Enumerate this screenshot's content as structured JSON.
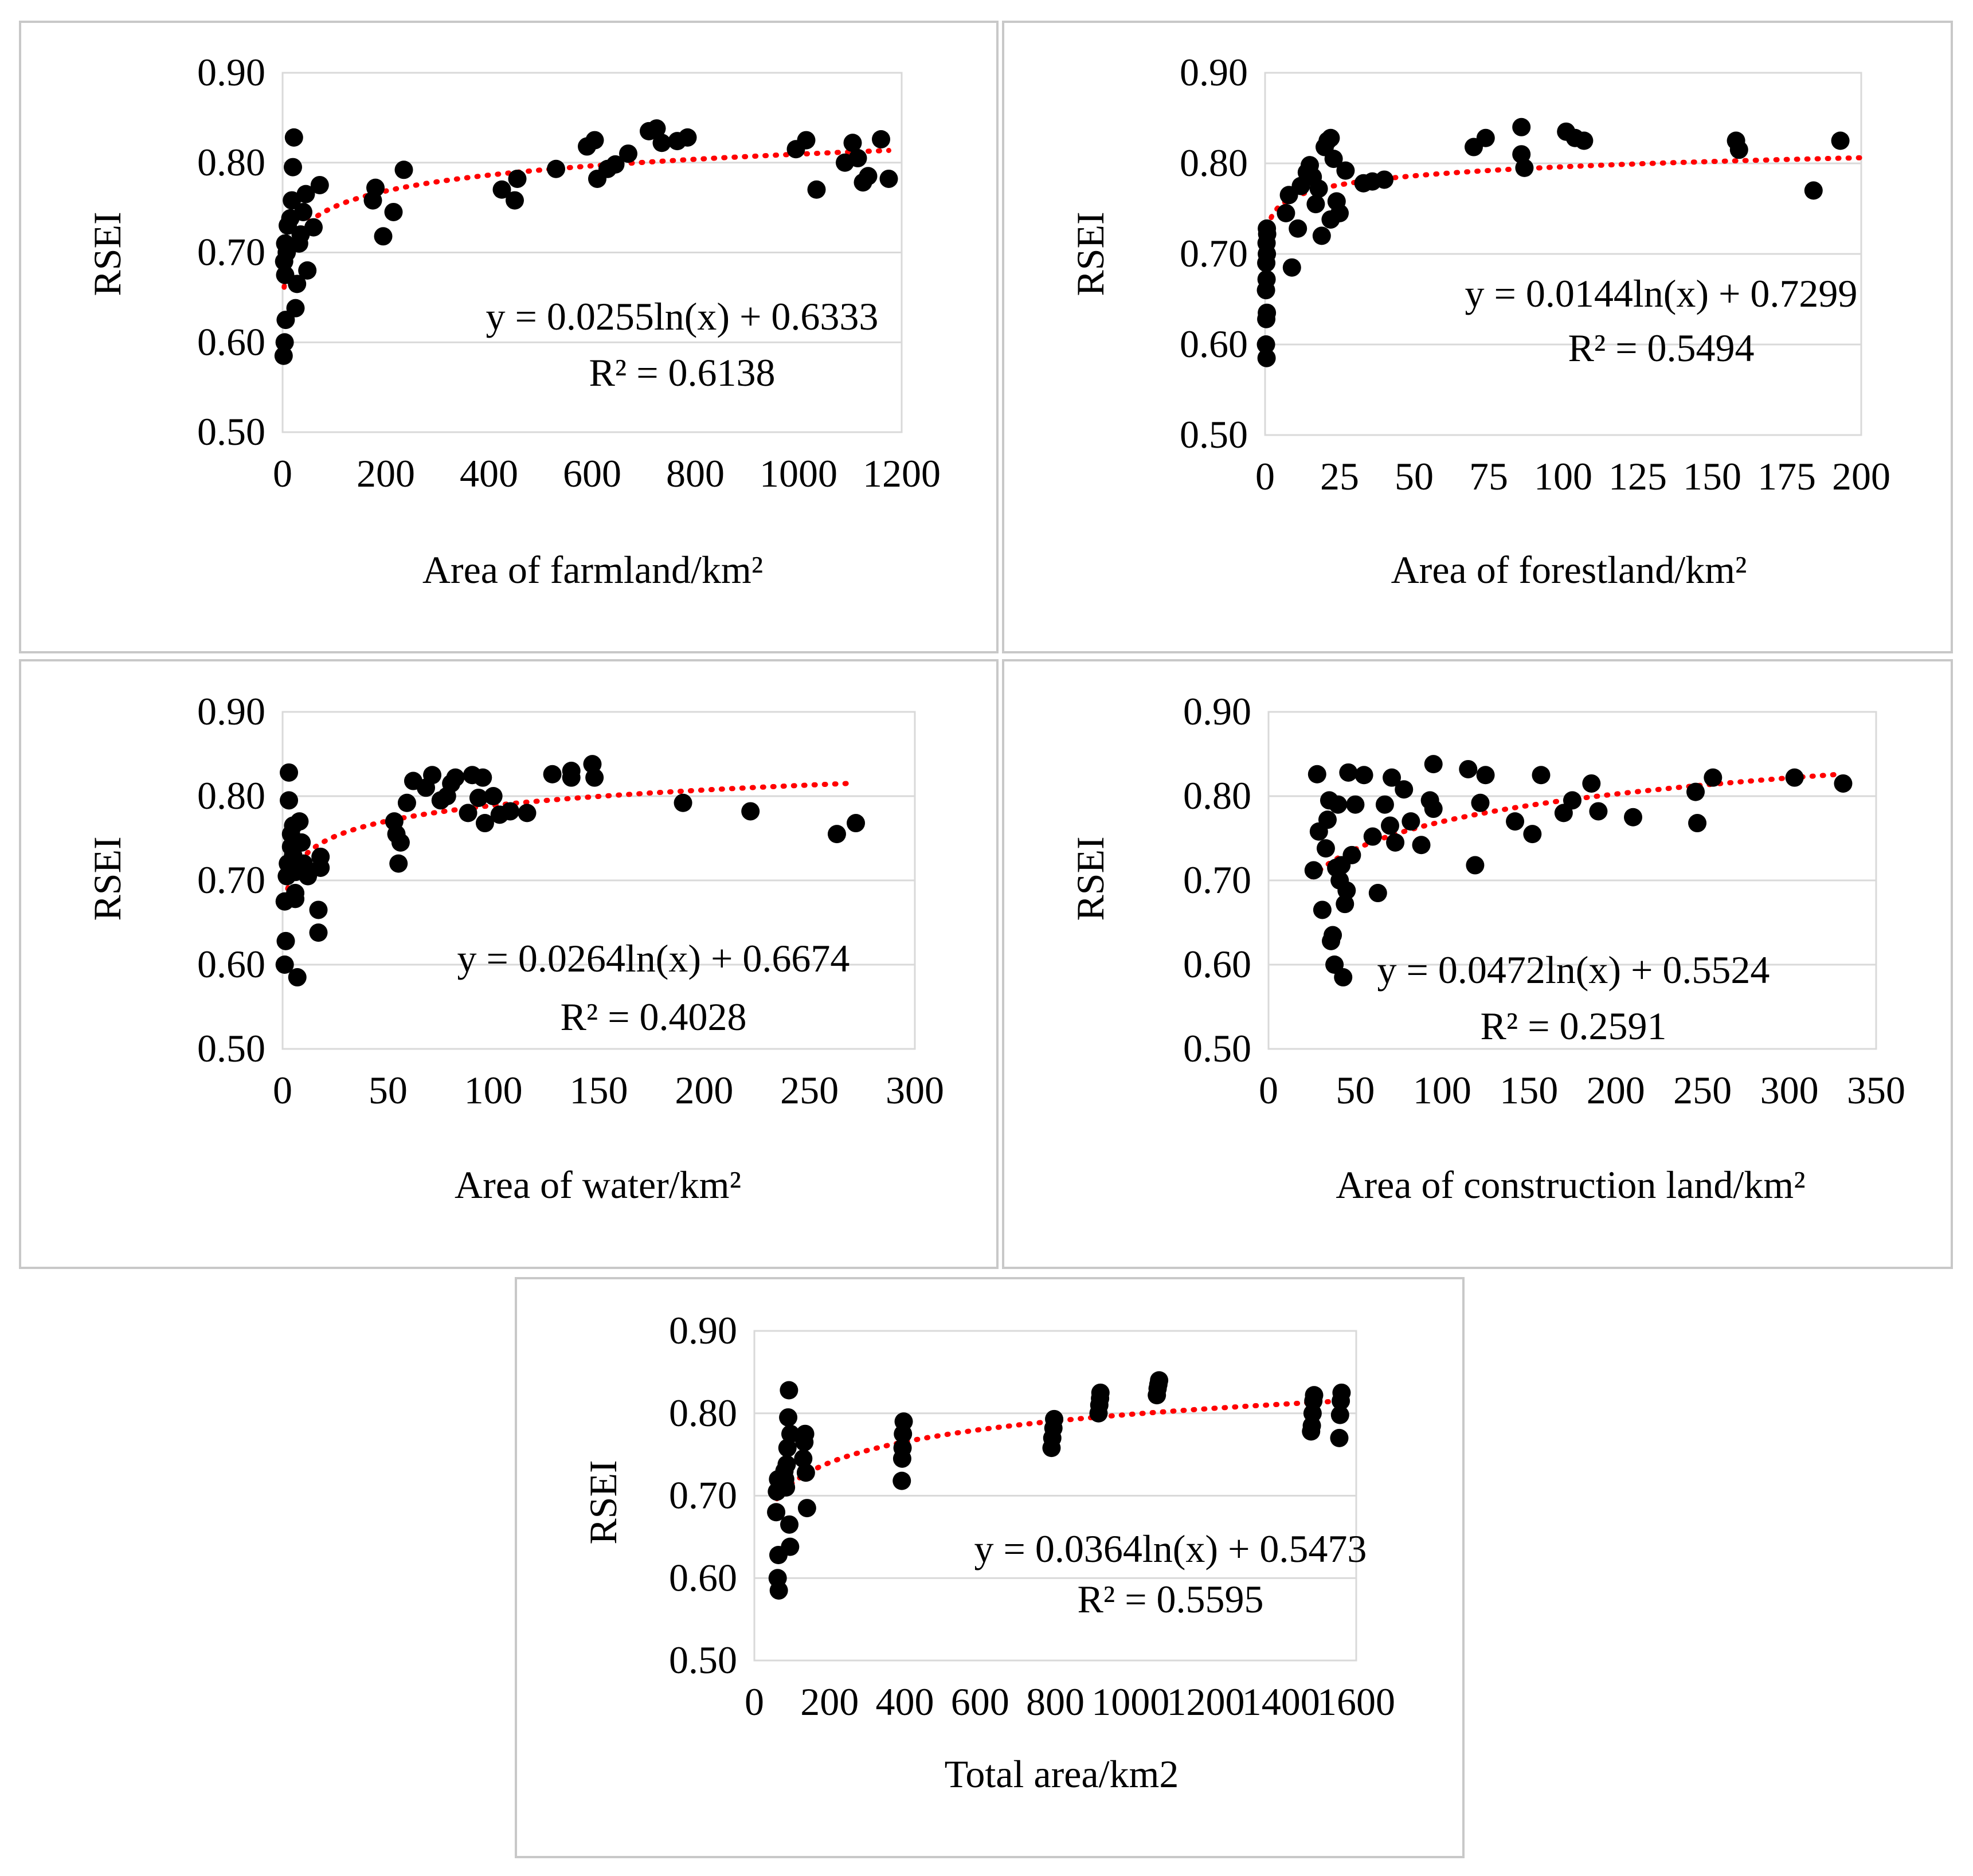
{
  "colors": {
    "points": "#000000",
    "trendline": "#ff0000",
    "grid": "#d9d9d9",
    "frame": "#c8c8c8"
  },
  "chart_data": [
    {
      "id": "farmland",
      "type": "scatter",
      "title": "",
      "xlabel": "Area of farmland/km²",
      "ylabel": "RSEI",
      "xlim": [
        0,
        1200
      ],
      "ylim": [
        0.5,
        0.9
      ],
      "xticks": [
        "0",
        "200",
        "400",
        "600",
        "800",
        "1000",
        "1200"
      ],
      "yticks": [
        "0.50",
        "0.60",
        "0.70",
        "0.80",
        "0.90"
      ],
      "trendline": {
        "type": "log",
        "a": 0.0255,
        "b": 0.6333,
        "x_range": [
          3,
          1175
        ],
        "equation": "y = 0.0255ln(x) + 0.6333",
        "r2": "R² = 0.6138"
      },
      "points": [
        [
          2,
          0.585
        ],
        [
          4,
          0.6
        ],
        [
          6,
          0.625
        ],
        [
          5,
          0.675
        ],
        [
          3,
          0.69
        ],
        [
          8,
          0.7
        ],
        [
          5,
          0.71
        ],
        [
          10,
          0.73
        ],
        [
          15,
          0.738
        ],
        [
          18,
          0.758
        ],
        [
          20,
          0.795
        ],
        [
          22,
          0.828
        ],
        [
          28,
          0.665
        ],
        [
          25,
          0.638
        ],
        [
          32,
          0.71
        ],
        [
          35,
          0.72
        ],
        [
          40,
          0.745
        ],
        [
          45,
          0.765
        ],
        [
          48,
          0.68
        ],
        [
          60,
          0.728
        ],
        [
          72,
          0.775
        ],
        [
          175,
          0.758
        ],
        [
          180,
          0.772
        ],
        [
          195,
          0.718
        ],
        [
          215,
          0.745
        ],
        [
          235,
          0.792
        ],
        [
          425,
          0.77
        ],
        [
          450,
          0.758
        ],
        [
          455,
          0.782
        ],
        [
          530,
          0.793
        ],
        [
          590,
          0.818
        ],
        [
          605,
          0.825
        ],
        [
          610,
          0.782
        ],
        [
          630,
          0.793
        ],
        [
          645,
          0.798
        ],
        [
          670,
          0.81
        ],
        [
          710,
          0.835
        ],
        [
          725,
          0.838
        ],
        [
          735,
          0.822
        ],
        [
          765,
          0.824
        ],
        [
          785,
          0.828
        ],
        [
          995,
          0.815
        ],
        [
          1015,
          0.825
        ],
        [
          1035,
          0.77
        ],
        [
          1090,
          0.8
        ],
        [
          1105,
          0.822
        ],
        [
          1115,
          0.805
        ],
        [
          1125,
          0.778
        ],
        [
          1135,
          0.785
        ],
        [
          1160,
          0.826
        ],
        [
          1175,
          0.782
        ]
      ]
    },
    {
      "id": "forestland",
      "type": "scatter",
      "title": "",
      "xlabel": "Area of forestland/km²",
      "ylabel": "RSEI",
      "xlim": [
        0,
        200
      ],
      "ylim": [
        0.5,
        0.9
      ],
      "xticks": [
        "0",
        "25",
        "50",
        "75",
        "100",
        "125",
        "150",
        "175",
        "200"
      ],
      "yticks": [
        "0.50",
        "0.60",
        "0.70",
        "0.80",
        "0.90"
      ],
      "trendline": {
        "type": "log",
        "a": 0.0144,
        "b": 0.7299,
        "x_range": [
          0.2,
          200
        ],
        "equation": "y = 0.0144ln(x) + 0.7299",
        "r2": "R² = 0.5494"
      },
      "points": [
        [
          0.5,
          0.585
        ],
        [
          0.3,
          0.6
        ],
        [
          0.4,
          0.628
        ],
        [
          0.6,
          0.635
        ],
        [
          0.3,
          0.66
        ],
        [
          0.5,
          0.672
        ],
        [
          0.4,
          0.69
        ],
        [
          0.6,
          0.7
        ],
        [
          0.5,
          0.712
        ],
        [
          0.7,
          0.722
        ],
        [
          0.6,
          0.728
        ],
        [
          7,
          0.745
        ],
        [
          8,
          0.765
        ],
        [
          9,
          0.685
        ],
        [
          11,
          0.728
        ],
        [
          12,
          0.775
        ],
        [
          14,
          0.79
        ],
        [
          15,
          0.798
        ],
        [
          16,
          0.785
        ],
        [
          17,
          0.755
        ],
        [
          18,
          0.772
        ],
        [
          19,
          0.72
        ],
        [
          20,
          0.818
        ],
        [
          21,
          0.825
        ],
        [
          22,
          0.738
        ],
        [
          22,
          0.828
        ],
        [
          23,
          0.805
        ],
        [
          24,
          0.758
        ],
        [
          25,
          0.745
        ],
        [
          27,
          0.792
        ],
        [
          33,
          0.778
        ],
        [
          36,
          0.78
        ],
        [
          40,
          0.782
        ],
        [
          70,
          0.818
        ],
        [
          74,
          0.828
        ],
        [
          86,
          0.84
        ],
        [
          86,
          0.81
        ],
        [
          87,
          0.795
        ],
        [
          101,
          0.835
        ],
        [
          104,
          0.828
        ],
        [
          107,
          0.825
        ],
        [
          158,
          0.825
        ],
        [
          159,
          0.815
        ],
        [
          184,
          0.77
        ],
        [
          193,
          0.825
        ]
      ]
    },
    {
      "id": "water",
      "type": "scatter",
      "title": "",
      "xlabel": "Area of water/km²",
      "ylabel": "RSEI",
      "xlim": [
        0,
        300
      ],
      "ylim": [
        0.5,
        0.9
      ],
      "xticks": [
        "0",
        "50",
        "100",
        "150",
        "200",
        "250",
        "300"
      ],
      "yticks": [
        "0.50",
        "0.60",
        "0.70",
        "0.80",
        "0.90"
      ],
      "trendline": {
        "type": "log",
        "a": 0.0264,
        "b": 0.6674,
        "x_range": [
          1.5,
          268
        ],
        "equation": "y = 0.0264ln(x) + 0.6674",
        "r2": "R² = 0.4028"
      },
      "points": [
        [
          1,
          0.6
        ],
        [
          1.5,
          0.628
        ],
        [
          1,
          0.675
        ],
        [
          2,
          0.705
        ],
        [
          2.5,
          0.72
        ],
        [
          3,
          0.828
        ],
        [
          3,
          0.795
        ],
        [
          4,
          0.74
        ],
        [
          4,
          0.755
        ],
        [
          5,
          0.765
        ],
        [
          5,
          0.73
        ],
        [
          6,
          0.71
        ],
        [
          6,
          0.685
        ],
        [
          6,
          0.678
        ],
        [
          7,
          0.585
        ],
        [
          8,
          0.77
        ],
        [
          9,
          0.745
        ],
        [
          10,
          0.72
        ],
        [
          12,
          0.705
        ],
        [
          17,
          0.665
        ],
        [
          17,
          0.638
        ],
        [
          18,
          0.728
        ],
        [
          18,
          0.715
        ],
        [
          53,
          0.77
        ],
        [
          54,
          0.755
        ],
        [
          55,
          0.72
        ],
        [
          56,
          0.745
        ],
        [
          59,
          0.792
        ],
        [
          62,
          0.818
        ],
        [
          68,
          0.81
        ],
        [
          71,
          0.825
        ],
        [
          75,
          0.795
        ],
        [
          78,
          0.8
        ],
        [
          80,
          0.815
        ],
        [
          82,
          0.822
        ],
        [
          88,
          0.78
        ],
        [
          90,
          0.825
        ],
        [
          93,
          0.798
        ],
        [
          95,
          0.822
        ],
        [
          96,
          0.768
        ],
        [
          100,
          0.8
        ],
        [
          103,
          0.778
        ],
        [
          108,
          0.782
        ],
        [
          116,
          0.78
        ],
        [
          128,
          0.826
        ],
        [
          137,
          0.83
        ],
        [
          137,
          0.822
        ],
        [
          147,
          0.838
        ],
        [
          148,
          0.822
        ],
        [
          190,
          0.792
        ],
        [
          222,
          0.782
        ],
        [
          263,
          0.755
        ],
        [
          272,
          0.768
        ]
      ]
    },
    {
      "id": "construction",
      "type": "scatter",
      "title": "",
      "xlabel": "Area of construction land/km²",
      "ylabel": "RSEI",
      "xlim": [
        0,
        350
      ],
      "ylim": [
        0.5,
        0.9
      ],
      "xticks": [
        "0",
        "50",
        "100",
        "150",
        "200",
        "250",
        "300",
        "350"
      ],
      "yticks": [
        "0.50",
        "0.60",
        "0.70",
        "0.80",
        "0.90"
      ],
      "trendline": {
        "type": "log",
        "a": 0.0472,
        "b": 0.5524,
        "x_range": [
          25,
          330
        ],
        "equation": "y = 0.0472ln(x) + 0.5524",
        "r2": "R² = 0.2591"
      },
      "points": [
        [
          26,
          0.712
        ],
        [
          28,
          0.826
        ],
        [
          29,
          0.758
        ],
        [
          31,
          0.665
        ],
        [
          33,
          0.738
        ],
        [
          34,
          0.772
        ],
        [
          35,
          0.795
        ],
        [
          36,
          0.628
        ],
        [
          37,
          0.635
        ],
        [
          38,
          0.6
        ],
        [
          39,
          0.715
        ],
        [
          40,
          0.79
        ],
        [
          41,
          0.7
        ],
        [
          42,
          0.718
        ],
        [
          43,
          0.585
        ],
        [
          44,
          0.672
        ],
        [
          45,
          0.688
        ],
        [
          46,
          0.828
        ],
        [
          48,
          0.73
        ],
        [
          50,
          0.79
        ],
        [
          55,
          0.825
        ],
        [
          60,
          0.752
        ],
        [
          63,
          0.685
        ],
        [
          67,
          0.79
        ],
        [
          70,
          0.765
        ],
        [
          71,
          0.822
        ],
        [
          73,
          0.745
        ],
        [
          78,
          0.808
        ],
        [
          82,
          0.77
        ],
        [
          88,
          0.742
        ],
        [
          93,
          0.795
        ],
        [
          95,
          0.838
        ],
        [
          95,
          0.785
        ],
        [
          115,
          0.832
        ],
        [
          119,
          0.718
        ],
        [
          122,
          0.792
        ],
        [
          125,
          0.825
        ],
        [
          142,
          0.77
        ],
        [
          152,
          0.755
        ],
        [
          157,
          0.825
        ],
        [
          170,
          0.78
        ],
        [
          175,
          0.795
        ],
        [
          186,
          0.815
        ],
        [
          190,
          0.782
        ],
        [
          210,
          0.775
        ],
        [
          246,
          0.805
        ],
        [
          247,
          0.768
        ],
        [
          256,
          0.822
        ],
        [
          303,
          0.822
        ],
        [
          331,
          0.815
        ]
      ]
    },
    {
      "id": "total",
      "type": "scatter",
      "title": "",
      "xlabel": "Total area/km2",
      "ylabel": "RSEI",
      "xlim": [
        0,
        1600
      ],
      "ylim": [
        0.5,
        0.9
      ],
      "xticks": [
        "0",
        "200",
        "400",
        "600",
        "800",
        "1000",
        "1200",
        "1400",
        "1600"
      ],
      "yticks": [
        "0.50",
        "0.60",
        "0.70",
        "0.80",
        "0.90"
      ],
      "trendline": {
        "type": "log",
        "a": 0.0364,
        "b": 0.5473,
        "x_range": [
          60,
          1560
        ],
        "equation": "y = 0.0364ln(x) + 0.5473",
        "r2": "R² = 0.5595"
      },
      "points": [
        [
          65,
          0.585
        ],
        [
          62,
          0.6
        ],
        [
          64,
          0.628
        ],
        [
          58,
          0.68
        ],
        [
          60,
          0.705
        ],
        [
          63,
          0.72
        ],
        [
          80,
          0.73
        ],
        [
          82,
          0.72
        ],
        [
          84,
          0.71
        ],
        [
          86,
          0.738
        ],
        [
          88,
          0.758
        ],
        [
          90,
          0.795
        ],
        [
          92,
          0.828
        ],
        [
          93,
          0.665
        ],
        [
          95,
          0.638
        ],
        [
          96,
          0.775
        ],
        [
          130,
          0.745
        ],
        [
          133,
          0.765
        ],
        [
          135,
          0.775
        ],
        [
          137,
          0.728
        ],
        [
          140,
          0.685
        ],
        [
          392,
          0.718
        ],
        [
          393,
          0.745
        ],
        [
          394,
          0.758
        ],
        [
          395,
          0.775
        ],
        [
          397,
          0.79
        ],
        [
          790,
          0.758
        ],
        [
          792,
          0.77
        ],
        [
          795,
          0.782
        ],
        [
          797,
          0.793
        ],
        [
          915,
          0.8
        ],
        [
          917,
          0.81
        ],
        [
          919,
          0.818
        ],
        [
          920,
          0.825
        ],
        [
          1070,
          0.822
        ],
        [
          1072,
          0.83
        ],
        [
          1074,
          0.835
        ],
        [
          1076,
          0.84
        ],
        [
          1480,
          0.778
        ],
        [
          1482,
          0.785
        ],
        [
          1484,
          0.8
        ],
        [
          1486,
          0.815
        ],
        [
          1488,
          0.822
        ],
        [
          1555,
          0.77
        ],
        [
          1557,
          0.798
        ],
        [
          1559,
          0.815
        ],
        [
          1561,
          0.825
        ]
      ]
    }
  ]
}
